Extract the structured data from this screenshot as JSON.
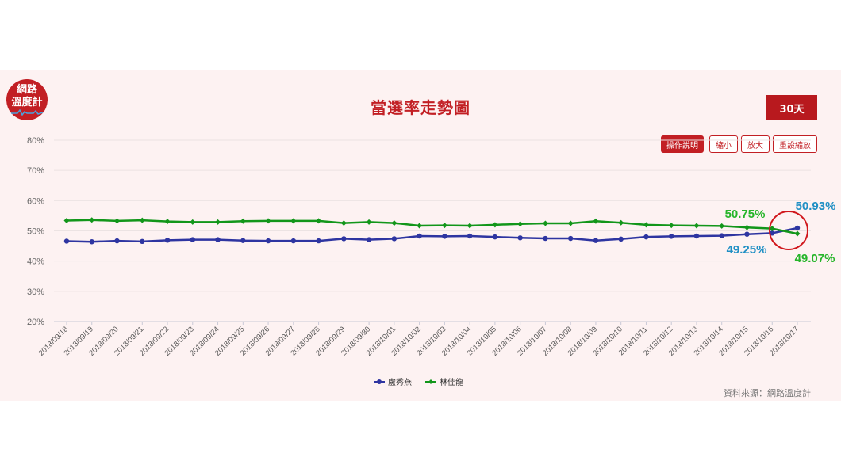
{
  "logo": {
    "line1": "網路",
    "line2": "溫度計"
  },
  "title": "當選率走勢圖",
  "range_button": "30天",
  "toolbar": {
    "help": "操作說明",
    "zoom_out": "縮小",
    "zoom_in": "放大",
    "reset": "重設縮放"
  },
  "source": "資料來源：網路溫度計",
  "annotations": {
    "green_end": "50.75%",
    "blue_end": "50.93%",
    "blue_before": "49.25%",
    "green_after": "49.07%"
  },
  "colors": {
    "blue": "#2e35a1",
    "green": "#12961a",
    "accent": "#c21f24"
  },
  "chart_data": {
    "type": "line",
    "x": [
      "2018/09/18",
      "2018/09/19",
      "2018/09/20",
      "2018/09/21",
      "2018/09/22",
      "2018/09/23",
      "2018/09/24",
      "2018/09/25",
      "2018/09/26",
      "2018/09/27",
      "2018/09/28",
      "2018/09/29",
      "2018/09/30",
      "2018/10/01",
      "2018/10/02",
      "2018/10/03",
      "2018/10/04",
      "2018/10/05",
      "2018/10/06",
      "2018/10/07",
      "2018/10/08",
      "2018/10/09",
      "2018/10/10",
      "2018/10/11",
      "2018/10/12",
      "2018/10/13",
      "2018/10/14",
      "2018/10/15",
      "2018/10/16",
      "2018/10/17"
    ],
    "y_ticks": [
      "20%",
      "30%",
      "40%",
      "50%",
      "60%",
      "70%",
      "80%"
    ],
    "ylim": [
      20,
      80
    ],
    "series": [
      {
        "name": "盧秀燕",
        "color": "#2e35a1",
        "values": [
          46.6,
          46.4,
          46.7,
          46.5,
          46.9,
          47.1,
          47.1,
          46.8,
          46.7,
          46.7,
          46.7,
          47.4,
          47.1,
          47.4,
          48.3,
          48.2,
          48.3,
          48.0,
          47.7,
          47.5,
          47.5,
          46.8,
          47.3,
          48.0,
          48.2,
          48.3,
          48.4,
          48.9,
          49.25,
          50.93
        ]
      },
      {
        "name": "林佳龍",
        "color": "#12961a",
        "values": [
          53.4,
          53.6,
          53.3,
          53.5,
          53.1,
          52.9,
          52.9,
          53.2,
          53.3,
          53.3,
          53.3,
          52.6,
          52.9,
          52.6,
          51.7,
          51.8,
          51.7,
          52.0,
          52.3,
          52.5,
          52.5,
          53.2,
          52.7,
          52.0,
          51.8,
          51.7,
          51.6,
          51.1,
          50.75,
          49.07
        ]
      }
    ],
    "legend_position": "bottom-center",
    "grid": true
  }
}
